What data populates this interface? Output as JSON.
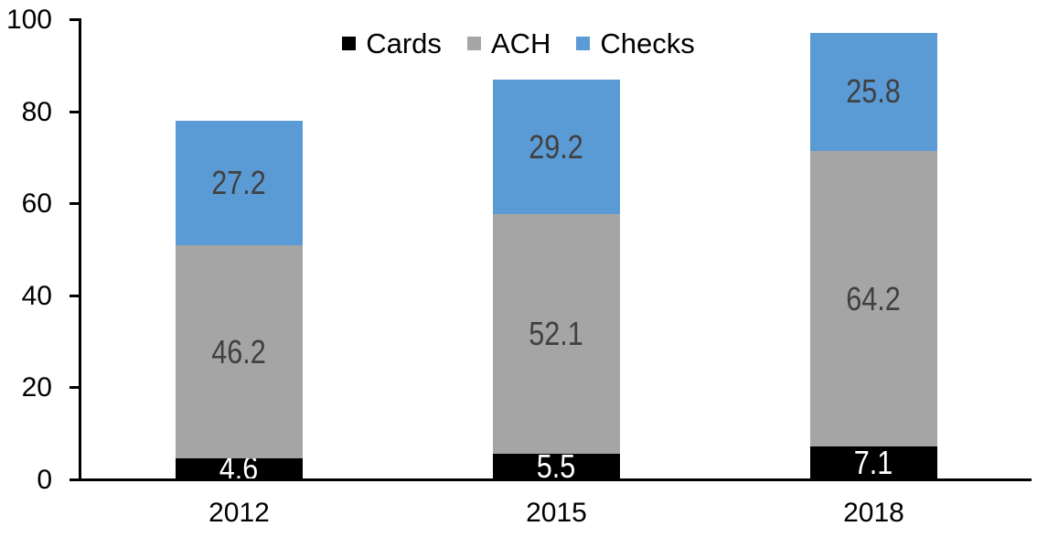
{
  "chart_data": {
    "type": "bar",
    "stacked": true,
    "title": "",
    "xlabel": "",
    "ylabel": "",
    "categories": [
      "2012",
      "2015",
      "2018"
    ],
    "series": [
      {
        "name": "Cards",
        "color": "#000000",
        "label_color": "#FFFFFF",
        "values": [
          4.6,
          5.5,
          7.1
        ]
      },
      {
        "name": "ACH",
        "color": "#A5A5A5",
        "label_color": "#404040",
        "values": [
          46.2,
          52.1,
          64.2
        ]
      },
      {
        "name": "Checks",
        "color": "#5B9BD5",
        "label_color": "#404040",
        "values": [
          27.2,
          29.2,
          25.8
        ]
      }
    ],
    "y_ticks": [
      0,
      20,
      40,
      60,
      80,
      100
    ],
    "ylim": [
      0,
      100
    ],
    "grid": false,
    "legend_position": "top",
    "axis_color": "#000000",
    "background_color": "#FFFFFF"
  }
}
